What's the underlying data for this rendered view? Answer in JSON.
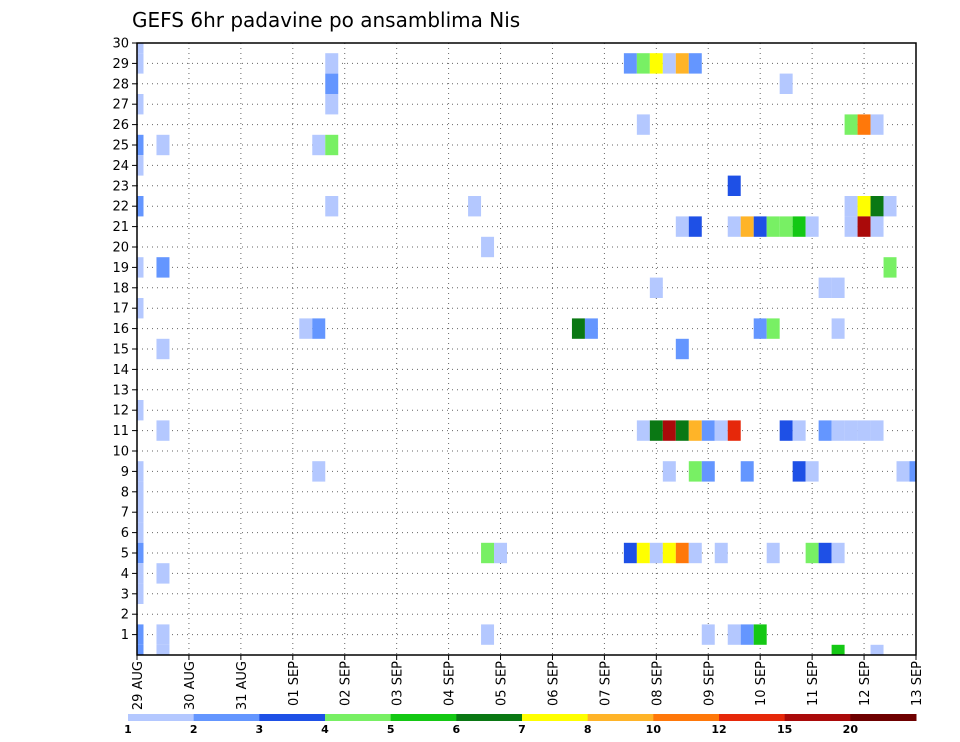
{
  "chart_data": {
    "type": "heatmap",
    "title": "GEFS 6hr padavine po ansamblima Nis",
    "y_range": [
      0,
      30
    ],
    "y_ticks": [
      1,
      2,
      3,
      4,
      5,
      6,
      7,
      8,
      9,
      10,
      11,
      12,
      13,
      14,
      15,
      16,
      17,
      18,
      19,
      20,
      21,
      22,
      23,
      24,
      25,
      26,
      27,
      28,
      29,
      30
    ],
    "x_range": [
      0,
      60
    ],
    "x_ticks": [
      {
        "pos": 0,
        "label": "29 AUG"
      },
      {
        "pos": 4,
        "label": "30 AUG"
      },
      {
        "pos": 8,
        "label": "31 AUG"
      },
      {
        "pos": 12,
        "label": "01 SEP"
      },
      {
        "pos": 16,
        "label": "02 SEP"
      },
      {
        "pos": 20,
        "label": "03 SEP"
      },
      {
        "pos": 24,
        "label": "04 SEP"
      },
      {
        "pos": 28,
        "label": "05 SEP"
      },
      {
        "pos": 32,
        "label": "06 SEP"
      },
      {
        "pos": 36,
        "label": "07 SEP"
      },
      {
        "pos": 40,
        "label": "08 SEP"
      },
      {
        "pos": 44,
        "label": "09 SEP"
      },
      {
        "pos": 48,
        "label": "10 SEP"
      },
      {
        "pos": 52,
        "label": "11 SEP"
      },
      {
        "pos": 56,
        "label": "12 SEP"
      },
      {
        "pos": 60,
        "label": "13 SEP"
      }
    ],
    "grid": true,
    "colorbar": {
      "colors": [
        "#b4c8ff",
        "#6496ff",
        "#1e50e6",
        "#78f064",
        "#14c814",
        "#0a7814",
        "#ffff00",
        "#ffb428",
        "#ff780a",
        "#e6280a",
        "#aa0a0a",
        "#6e0000"
      ],
      "labels": [
        "1",
        "2",
        "3",
        "4",
        "5",
        "6",
        "7",
        "8",
        "10",
        "12",
        "15",
        "20"
      ]
    },
    "cells": [
      {
        "x": 0,
        "y": 30,
        "c": 0
      },
      {
        "x": 0,
        "y": 29,
        "c": 0
      },
      {
        "x": 0,
        "y": 27,
        "c": 0
      },
      {
        "x": 0,
        "y": 25,
        "c": 1
      },
      {
        "x": 0,
        "y": 24,
        "c": 0
      },
      {
        "x": 0,
        "y": 22,
        "c": 1
      },
      {
        "x": 0,
        "y": 19,
        "c": 0
      },
      {
        "x": 0,
        "y": 17,
        "c": 0
      },
      {
        "x": 0,
        "y": 12,
        "c": 0
      },
      {
        "x": 0,
        "y": 9,
        "c": 0
      },
      {
        "x": 0,
        "y": 8,
        "c": 0
      },
      {
        "x": 0,
        "y": 7,
        "c": 0
      },
      {
        "x": 0,
        "y": 6,
        "c": 0
      },
      {
        "x": 0,
        "y": 5,
        "c": 1
      },
      {
        "x": 0,
        "y": 4,
        "c": 0
      },
      {
        "x": 0,
        "y": 3,
        "c": 0
      },
      {
        "x": 0,
        "y": 1,
        "c": 1
      },
      {
        "x": 0,
        "y": 0,
        "c": 1
      },
      {
        "x": 2,
        "y": 25,
        "c": 0
      },
      {
        "x": 2,
        "y": 19,
        "c": 1
      },
      {
        "x": 2,
        "y": 15,
        "c": 0
      },
      {
        "x": 2,
        "y": 11,
        "c": 0
      },
      {
        "x": 2,
        "y": 4,
        "c": 0
      },
      {
        "x": 2,
        "y": 1,
        "c": 0
      },
      {
        "x": 2,
        "y": 0,
        "c": 0
      },
      {
        "x": 13,
        "y": 16,
        "c": 0
      },
      {
        "x": 14,
        "y": 16,
        "c": 1
      },
      {
        "x": 14,
        "y": 9,
        "c": 0
      },
      {
        "x": 14,
        "y": 25,
        "c": 0
      },
      {
        "x": 15,
        "y": 25,
        "c": 3
      },
      {
        "x": 15,
        "y": 29,
        "c": 0
      },
      {
        "x": 15,
        "y": 28,
        "c": 1
      },
      {
        "x": 15,
        "y": 27,
        "c": 0
      },
      {
        "x": 15,
        "y": 22,
        "c": 0
      },
      {
        "x": 26,
        "y": 22,
        "c": 0
      },
      {
        "x": 27,
        "y": 20,
        "c": 0
      },
      {
        "x": 27,
        "y": 5,
        "c": 3
      },
      {
        "x": 28,
        "y": 5,
        "c": 0
      },
      {
        "x": 27,
        "y": 1,
        "c": 0
      },
      {
        "x": 34,
        "y": 16,
        "c": 5
      },
      {
        "x": 35,
        "y": 16,
        "c": 1
      },
      {
        "x": 38,
        "y": 29,
        "c": 1
      },
      {
        "x": 39,
        "y": 29,
        "c": 3
      },
      {
        "x": 40,
        "y": 29,
        "c": 6
      },
      {
        "x": 41,
        "y": 29,
        "c": 0
      },
      {
        "x": 42,
        "y": 29,
        "c": 7
      },
      {
        "x": 43,
        "y": 29,
        "c": 1
      },
      {
        "x": 39,
        "y": 26,
        "c": 0
      },
      {
        "x": 40,
        "y": 18,
        "c": 0
      },
      {
        "x": 39,
        "y": 11,
        "c": 0
      },
      {
        "x": 40,
        "y": 11,
        "c": 5
      },
      {
        "x": 41,
        "y": 11,
        "c": 10
      },
      {
        "x": 42,
        "y": 11,
        "c": 5
      },
      {
        "x": 43,
        "y": 11,
        "c": 7
      },
      {
        "x": 44,
        "y": 11,
        "c": 1
      },
      {
        "x": 45,
        "y": 11,
        "c": 0
      },
      {
        "x": 46,
        "y": 11,
        "c": 9
      },
      {
        "x": 41,
        "y": 9,
        "c": 0
      },
      {
        "x": 43,
        "y": 9,
        "c": 3
      },
      {
        "x": 44,
        "y": 9,
        "c": 1
      },
      {
        "x": 47,
        "y": 9,
        "c": 1
      },
      {
        "x": 51,
        "y": 9,
        "c": 2
      },
      {
        "x": 52,
        "y": 9,
        "c": 0
      },
      {
        "x": 59,
        "y": 9,
        "c": 0
      },
      {
        "x": 60,
        "y": 9,
        "c": 1
      },
      {
        "x": 38,
        "y": 5,
        "c": 2
      },
      {
        "x": 39,
        "y": 5,
        "c": 6
      },
      {
        "x": 40,
        "y": 5,
        "c": 0
      },
      {
        "x": 41,
        "y": 5,
        "c": 6
      },
      {
        "x": 42,
        "y": 5,
        "c": 8
      },
      {
        "x": 43,
        "y": 5,
        "c": 0
      },
      {
        "x": 45,
        "y": 5,
        "c": 0
      },
      {
        "x": 49,
        "y": 5,
        "c": 0
      },
      {
        "x": 52,
        "y": 5,
        "c": 3
      },
      {
        "x": 53,
        "y": 5,
        "c": 2
      },
      {
        "x": 54,
        "y": 5,
        "c": 0
      },
      {
        "x": 42,
        "y": 21,
        "c": 0
      },
      {
        "x": 43,
        "y": 21,
        "c": 2
      },
      {
        "x": 42,
        "y": 15,
        "c": 1
      },
      {
        "x": 44,
        "y": 1,
        "c": 0
      },
      {
        "x": 46,
        "y": 1,
        "c": 0
      },
      {
        "x": 47,
        "y": 1,
        "c": 1
      },
      {
        "x": 48,
        "y": 1,
        "c": 4
      },
      {
        "x": 46,
        "y": 23,
        "c": 2
      },
      {
        "x": 46,
        "y": 21,
        "c": 0
      },
      {
        "x": 47,
        "y": 21,
        "c": 7
      },
      {
        "x": 48,
        "y": 21,
        "c": 2
      },
      {
        "x": 49,
        "y": 21,
        "c": 3
      },
      {
        "x": 50,
        "y": 21,
        "c": 3
      },
      {
        "x": 51,
        "y": 21,
        "c": 4
      },
      {
        "x": 52,
        "y": 21,
        "c": 0
      },
      {
        "x": 48,
        "y": 16,
        "c": 1
      },
      {
        "x": 49,
        "y": 16,
        "c": 3
      },
      {
        "x": 50,
        "y": 11,
        "c": 2
      },
      {
        "x": 51,
        "y": 11,
        "c": 0
      },
      {
        "x": 53,
        "y": 11,
        "c": 1
      },
      {
        "x": 54,
        "y": 11,
        "c": 0
      },
      {
        "x": 55,
        "y": 11,
        "c": 0
      },
      {
        "x": 56,
        "y": 11,
        "c": 0
      },
      {
        "x": 57,
        "y": 11,
        "c": 0
      },
      {
        "x": 50,
        "y": 28,
        "c": 0
      },
      {
        "x": 53,
        "y": 18,
        "c": 0
      },
      {
        "x": 54,
        "y": 18,
        "c": 0
      },
      {
        "x": 54,
        "y": 16,
        "c": 0
      },
      {
        "x": 54,
        "y": 0,
        "c": 4
      },
      {
        "x": 57,
        "y": 0,
        "c": 0
      },
      {
        "x": 55,
        "y": 26,
        "c": 3
      },
      {
        "x": 56,
        "y": 26,
        "c": 8
      },
      {
        "x": 57,
        "y": 26,
        "c": 0
      },
      {
        "x": 55,
        "y": 22,
        "c": 0
      },
      {
        "x": 56,
        "y": 22,
        "c": 6
      },
      {
        "x": 57,
        "y": 22,
        "c": 5
      },
      {
        "x": 58,
        "y": 22,
        "c": 0
      },
      {
        "x": 55,
        "y": 21,
        "c": 0
      },
      {
        "x": 56,
        "y": 21,
        "c": 10
      },
      {
        "x": 57,
        "y": 21,
        "c": 0
      },
      {
        "x": 58,
        "y": 19,
        "c": 3
      }
    ]
  }
}
